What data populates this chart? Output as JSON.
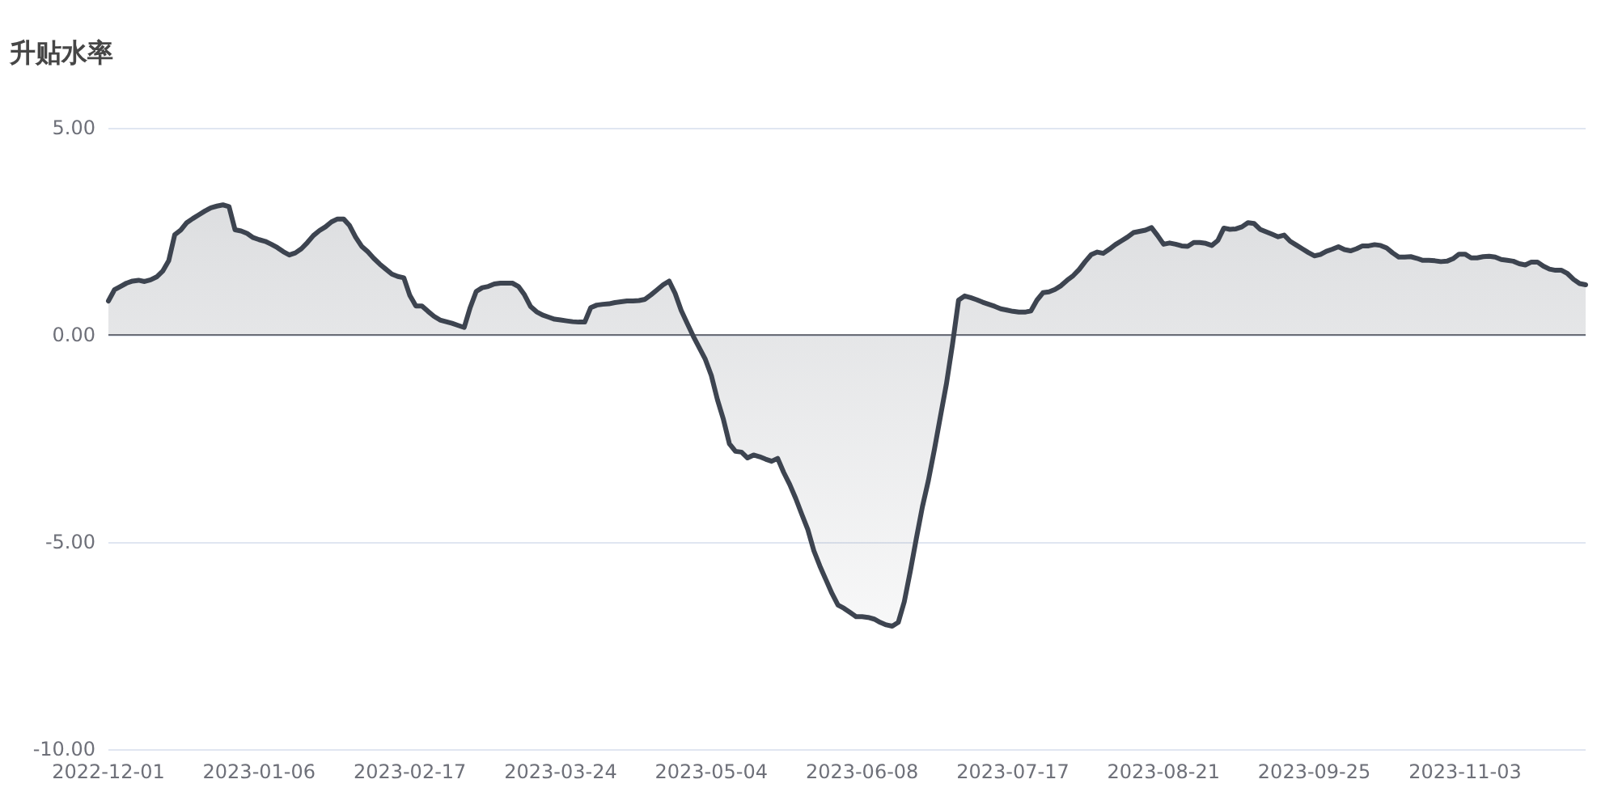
{
  "chart_data": {
    "type": "area",
    "title": "升贴水率",
    "categories": [
      "2022-12-01",
      null,
      null,
      null,
      null,
      null,
      null,
      null,
      null,
      null,
      null,
      null,
      null,
      null,
      null,
      null,
      null,
      null,
      null,
      null,
      null,
      null,
      null,
      null,
      null,
      "2023-01-06",
      null,
      null,
      null,
      null,
      null,
      null,
      null,
      null,
      null,
      null,
      null,
      null,
      null,
      null,
      null,
      null,
      null,
      null,
      null,
      null,
      null,
      null,
      null,
      null,
      "2023-02-17",
      null,
      null,
      null,
      null,
      null,
      null,
      null,
      null,
      null,
      null,
      null,
      null,
      null,
      null,
      null,
      null,
      null,
      null,
      null,
      null,
      null,
      null,
      null,
      null,
      "2023-03-24",
      null,
      null,
      null,
      null,
      null,
      null,
      null,
      null,
      null,
      null,
      null,
      null,
      null,
      null,
      null,
      null,
      null,
      null,
      null,
      null,
      null,
      null,
      null,
      null,
      "2023-05-04",
      null,
      null,
      null,
      null,
      null,
      null,
      null,
      null,
      null,
      null,
      null,
      null,
      null,
      null,
      null,
      null,
      null,
      null,
      null,
      null,
      null,
      null,
      null,
      null,
      "2023-06-08",
      null,
      null,
      null,
      null,
      null,
      null,
      null,
      null,
      null,
      null,
      null,
      null,
      null,
      null,
      null,
      null,
      null,
      null,
      null,
      null,
      null,
      null,
      null,
      null,
      "2023-07-17",
      null,
      null,
      null,
      null,
      null,
      null,
      null,
      null,
      null,
      null,
      null,
      null,
      null,
      null,
      null,
      null,
      null,
      null,
      null,
      null,
      null,
      null,
      null,
      null,
      "2023-08-21",
      null,
      null,
      null,
      null,
      null,
      null,
      null,
      null,
      null,
      null,
      null,
      null,
      null,
      null,
      null,
      null,
      null,
      null,
      null,
      null,
      null,
      null,
      null,
      null,
      "2023-09-25",
      null,
      null,
      null,
      null,
      null,
      null,
      null,
      null,
      null,
      null,
      null,
      null,
      null,
      null,
      null,
      null,
      null,
      null,
      null,
      null,
      null,
      null,
      null,
      null,
      "2023-11-03",
      null,
      null,
      null,
      null,
      null,
      null,
      null,
      null,
      null,
      null,
      null,
      null,
      null,
      null,
      null,
      null,
      null,
      null,
      null,
      null
    ],
    "series": [
      {
        "color": "#3d4450",
        "values": [
          0.82,
          1.09,
          1.17,
          1.25,
          1.3,
          1.32,
          1.29,
          1.33,
          1.4,
          1.54,
          1.79,
          2.42,
          2.53,
          2.71,
          2.81,
          2.9,
          2.99,
          3.07,
          3.11,
          3.14,
          3.1,
          2.54,
          2.51,
          2.45,
          2.35,
          2.3,
          2.26,
          2.19,
          2.11,
          2.01,
          1.93,
          1.98,
          2.08,
          2.23,
          2.4,
          2.52,
          2.61,
          2.73,
          2.8,
          2.8,
          2.64,
          2.36,
          2.14,
          2.01,
          1.85,
          1.71,
          1.59,
          1.47,
          1.41,
          1.38,
          0.95,
          0.7,
          0.7,
          0.57,
          0.45,
          0.36,
          0.32,
          0.28,
          0.23,
          0.18,
          0.66,
          1.05,
          1.14,
          1.17,
          1.23,
          1.25,
          1.25,
          1.25,
          1.17,
          0.97,
          0.69,
          0.56,
          0.48,
          0.43,
          0.38,
          0.36,
          0.34,
          0.32,
          0.31,
          0.31,
          0.66,
          0.72,
          0.74,
          0.75,
          0.78,
          0.8,
          0.82,
          0.82,
          0.83,
          0.86,
          0.97,
          1.09,
          1.21,
          1.3,
          1.0,
          0.59,
          0.28,
          -0.03,
          -0.31,
          -0.59,
          -0.98,
          -1.56,
          -2.04,
          -2.63,
          -2.81,
          -2.83,
          -2.97,
          -2.9,
          -2.94,
          -3.0,
          -3.05,
          -2.98,
          -3.32,
          -3.61,
          -3.95,
          -4.33,
          -4.7,
          -5.21,
          -5.58,
          -5.91,
          -6.24,
          -6.52,
          -6.6,
          -6.7,
          -6.8,
          -6.8,
          -6.82,
          -6.86,
          -6.94,
          -7.0,
          -7.03,
          -6.94,
          -6.44,
          -5.7,
          -4.91,
          -4.15,
          -3.51,
          -2.76,
          -1.96,
          -1.17,
          -0.22,
          0.84,
          0.94,
          0.9,
          0.85,
          0.79,
          0.74,
          0.69,
          0.63,
          0.6,
          0.57,
          0.55,
          0.55,
          0.58,
          0.84,
          1.02,
          1.04,
          1.1,
          1.19,
          1.32,
          1.43,
          1.58,
          1.77,
          1.94,
          2.0,
          1.97,
          2.07,
          2.18,
          2.27,
          2.36,
          2.47,
          2.5,
          2.53,
          2.59,
          2.4,
          2.19,
          2.22,
          2.19,
          2.15,
          2.14,
          2.23,
          2.23,
          2.21,
          2.16,
          2.28,
          2.58,
          2.55,
          2.56,
          2.61,
          2.71,
          2.69,
          2.55,
          2.49,
          2.43,
          2.37,
          2.41,
          2.26,
          2.17,
          2.08,
          1.99,
          1.91,
          1.94,
          2.02,
          2.07,
          2.13,
          2.06,
          2.03,
          2.08,
          2.15,
          2.15,
          2.18,
          2.16,
          2.1,
          1.98,
          1.88,
          1.88,
          1.89,
          1.85,
          1.8,
          1.8,
          1.79,
          1.77,
          1.78,
          1.84,
          1.95,
          1.95,
          1.86,
          1.86,
          1.89,
          1.9,
          1.88,
          1.82,
          1.8,
          1.78,
          1.72,
          1.69,
          1.76,
          1.76,
          1.66,
          1.59,
          1.56,
          1.56,
          1.48,
          1.34,
          1.24,
          1.21
        ]
      }
    ],
    "ylim": [
      -10,
      5
    ],
    "yticks": [
      {
        "value": 5,
        "label": "5.00"
      },
      {
        "value": 0,
        "label": "0.00"
      },
      {
        "value": -5,
        "label": "-5.00"
      },
      {
        "value": -10,
        "label": "-10.00"
      }
    ],
    "grid": "y"
  }
}
